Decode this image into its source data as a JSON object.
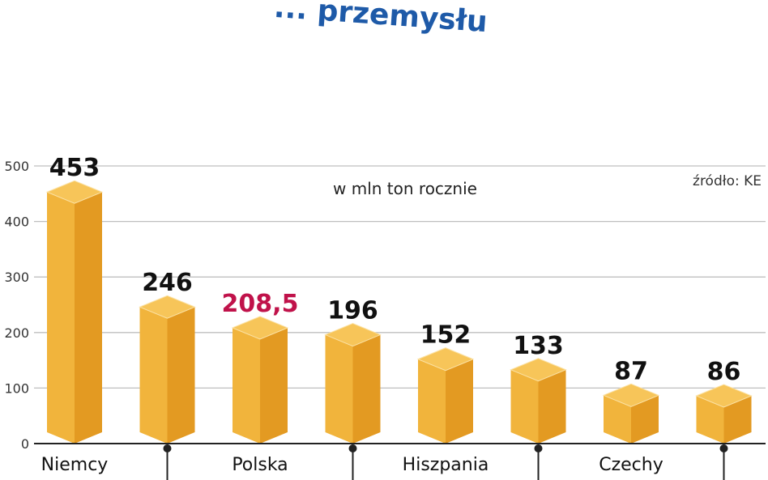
{
  "chart_data": {
    "type": "bar",
    "title": "... przemysłu",
    "unit_label": "w mln ton rocznie",
    "source": "źródło: KE",
    "ylim": [
      0,
      500
    ],
    "yticks": [
      0,
      100,
      200,
      300,
      400,
      500
    ],
    "ytick_labels": [
      "0",
      "100",
      "200",
      "300",
      "400",
      "500"
    ],
    "grid": true,
    "categories": [
      "Niemcy",
      "",
      "Polska",
      "",
      "Hiszpania",
      "",
      "Czechy",
      ""
    ],
    "values": [
      453,
      246,
      208.5,
      196,
      152,
      133,
      87,
      86
    ],
    "value_labels": [
      "453",
      "246",
      "208,5",
      "196",
      "152",
      "133",
      "87",
      "86"
    ],
    "highlight_index": 2,
    "colors": {
      "bar_top": "#f7c559",
      "bar_front": "#f1b43c",
      "bar_side": "#e39a22",
      "highlight_label": "#c0124a",
      "title": "#1e5aa8",
      "grid": "#bfbfbf"
    }
  }
}
